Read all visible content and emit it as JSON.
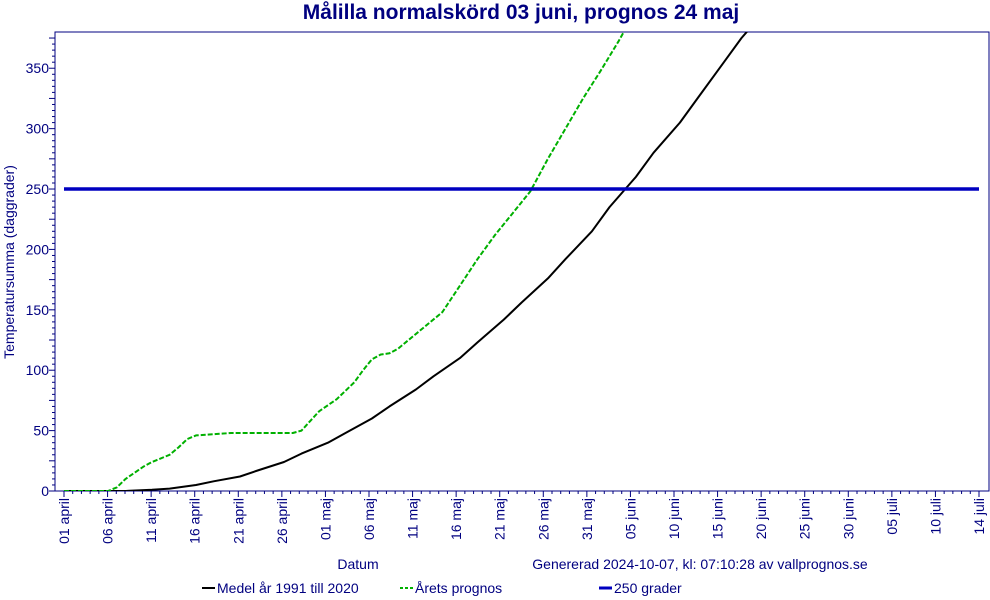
{
  "chart_data": {
    "type": "line",
    "title": "Målilla normalskörd 03 juni, prognos 24 maj",
    "xlabel": "Datum",
    "ylabel": "Temperatursumma (daggrader)",
    "generated": "Genererad 2024-10-07, kl: 07:10:28 av vallprognos.se",
    "xlim": [
      "2024-04-01",
      "2024-07-14"
    ],
    "ylim": [
      0,
      380
    ],
    "x_ticks": [
      "01 april",
      "06 april",
      "11 april",
      "16 april",
      "21 april",
      "26 april",
      "01 maj",
      "06 maj",
      "11 maj",
      "16 maj",
      "21 maj",
      "26 maj",
      "31 maj",
      "05 juni",
      "10 juni",
      "15 juni",
      "20 juni",
      "25 juni",
      "30 juni",
      "05 juli",
      "10 juli",
      "14 juli"
    ],
    "y_ticks": [
      0,
      50,
      100,
      150,
      200,
      250,
      300,
      350
    ],
    "grid": false,
    "legend_position": "bottom",
    "colors": {
      "axis": "#000080",
      "frame": "#000080"
    },
    "series": [
      {
        "name": "Medel år 1991 till 2020",
        "color": "#000000",
        "style": "solid",
        "x": [
          "2024-04-01",
          "2024-04-06",
          "2024-04-08",
          "2024-04-11",
          "2024-04-13",
          "2024-04-16",
          "2024-04-18",
          "2024-04-21",
          "2024-04-23",
          "2024-04-26",
          "2024-04-28",
          "2024-05-01",
          "2024-05-03",
          "2024-05-06",
          "2024-05-08",
          "2024-05-11",
          "2024-05-13",
          "2024-05-16",
          "2024-05-18",
          "2024-05-21",
          "2024-05-23",
          "2024-05-26",
          "2024-05-28",
          "2024-05-31",
          "2024-06-02",
          "2024-06-05",
          "2024-06-07",
          "2024-06-10",
          "2024-06-12",
          "2024-06-15",
          "2024-06-17",
          "2024-06-20"
        ],
        "y": [
          0,
          0,
          0,
          1,
          2,
          5,
          8,
          12,
          17,
          24,
          31,
          40,
          48,
          60,
          70,
          84,
          95,
          110,
          123,
          142,
          156,
          176,
          192,
          215,
          235,
          260,
          280,
          305,
          325,
          355,
          375,
          400
        ]
      },
      {
        "name": "Årets prognos",
        "color": "#00b000",
        "style": "dashed",
        "x": [
          "2024-04-01",
          "2024-04-04",
          "2024-04-06",
          "2024-04-07",
          "2024-04-08",
          "2024-04-10",
          "2024-04-11",
          "2024-04-13",
          "2024-04-14",
          "2024-04-15",
          "2024-04-16",
          "2024-04-20",
          "2024-04-24",
          "2024-04-27",
          "2024-04-28",
          "2024-04-29",
          "2024-04-30",
          "2024-05-02",
          "2024-05-04",
          "2024-05-05",
          "2024-05-06",
          "2024-05-07",
          "2024-05-08",
          "2024-05-09",
          "2024-05-10",
          "2024-05-12",
          "2024-05-14",
          "2024-05-16",
          "2024-05-18",
          "2024-05-20",
          "2024-05-22",
          "2024-05-24",
          "2024-05-26",
          "2024-05-28",
          "2024-05-30",
          "2024-06-01",
          "2024-06-03",
          "2024-06-04"
        ],
        "y": [
          0,
          0,
          0,
          3,
          10,
          20,
          24,
          30,
          36,
          43,
          46,
          48,
          48,
          48,
          50,
          58,
          66,
          76,
          90,
          100,
          109,
          113,
          114,
          118,
          124,
          136,
          148,
          170,
          192,
          212,
          230,
          248,
          275,
          300,
          325,
          348,
          372,
          385
        ]
      },
      {
        "name": "250 grader",
        "color": "#0000c0",
        "style": "solid-thick",
        "x": [
          "2024-04-01",
          "2024-07-14"
        ],
        "y": [
          250,
          250
        ]
      }
    ]
  }
}
